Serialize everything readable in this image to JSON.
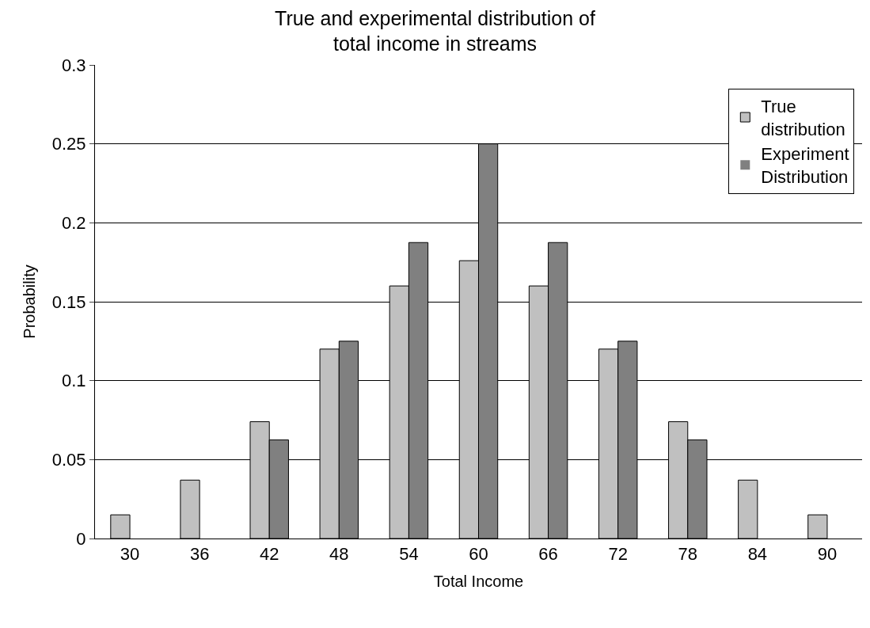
{
  "chart_data": {
    "type": "bar",
    "title": "True and experimental distribution of\ntotal income in streams",
    "xlabel": "Total Income",
    "ylabel": "Probability",
    "categories": [
      "30",
      "36",
      "42",
      "48",
      "54",
      "60",
      "66",
      "72",
      "78",
      "84",
      "90"
    ],
    "series": [
      {
        "name": "True\ndistribution",
        "color": "#c0c0c0",
        "values": [
          0.015,
          0.037,
          0.074,
          0.12,
          0.16,
          0.176,
          0.16,
          0.12,
          0.074,
          0.037,
          0.015
        ]
      },
      {
        "name": "Experiment\nDistribution",
        "color": "#808080",
        "values": [
          0,
          0,
          0.0625,
          0.125,
          0.1875,
          0.25,
          0.1875,
          0.125,
          0.0625,
          0,
          0
        ]
      }
    ],
    "ylim": [
      0,
      0.3
    ],
    "yticks": [
      0,
      0.05,
      0.1,
      0.15,
      0.2,
      0.25,
      0.3
    ],
    "grid": "y",
    "legend": "top right"
  }
}
